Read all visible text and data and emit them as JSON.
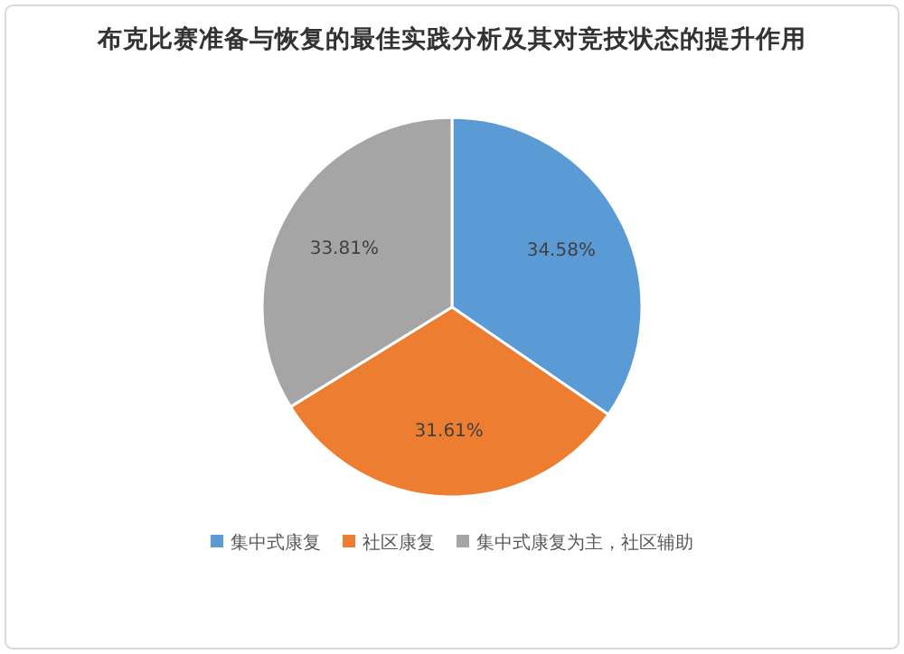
{
  "chart_data": {
    "type": "pie",
    "title": "布克比赛准备与恢复的最佳实践分析及其对竞技状态的提升作用",
    "categories": [
      "集中式康复",
      "社区康复",
      "集中式康复为主，社区辅助"
    ],
    "values": [
      34.58,
      31.61,
      33.81
    ],
    "value_labels": [
      "34.58%",
      "31.61%",
      "33.81%"
    ],
    "colors": [
      "#5b9bd5",
      "#ed7d31",
      "#a5a5a5"
    ],
    "legend": "bottom"
  }
}
